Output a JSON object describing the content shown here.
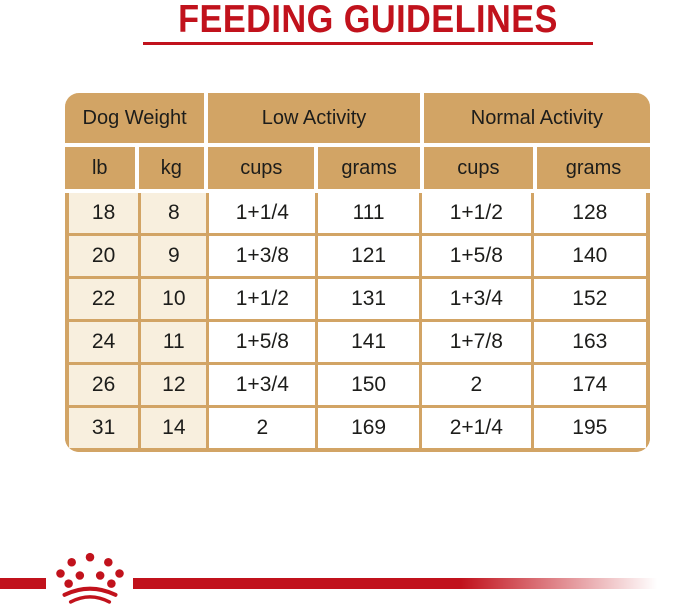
{
  "title": "FEEDING GUIDELINES",
  "colors": {
    "brand_red": "#c1121c",
    "table_tan": "#d2a465",
    "weight_cell_cream": "#f8efde",
    "text_dark": "#1d1d1b"
  },
  "table": {
    "group_headers": [
      "Dog Weight",
      "Low Activity",
      "Normal Activity"
    ],
    "column_headers": [
      "lb",
      "kg",
      "cups",
      "grams",
      "cups",
      "grams"
    ],
    "rows": [
      [
        "18",
        "8",
        "1+1/4",
        "111",
        "1+1/2",
        "128"
      ],
      [
        "20",
        "9",
        "1+3/8",
        "121",
        "1+5/8",
        "140"
      ],
      [
        "22",
        "10",
        "1+1/2",
        "131",
        "1+3/4",
        "152"
      ],
      [
        "24",
        "11",
        "1+5/8",
        "141",
        "1+7/8",
        "163"
      ],
      [
        "26",
        "12",
        "1+3/4",
        "150",
        "2",
        "174"
      ],
      [
        "31",
        "14",
        "2",
        "169",
        "2+1/4",
        "195"
      ]
    ]
  },
  "footer": {
    "logo": "royal-canin-crown-logo"
  }
}
